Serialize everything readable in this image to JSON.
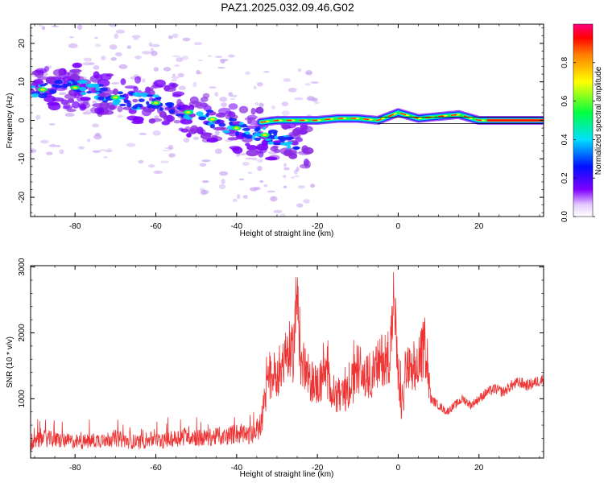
{
  "title": "PAZ1.2025.032.09.46.G02",
  "chart_data": [
    {
      "type": "heatmap",
      "xlabel": "Height of straight line (km)",
      "ylabel": "Frequency (Hz)",
      "xlim": [
        -91,
        36
      ],
      "ylim": [
        -25,
        25
      ],
      "xticks": [
        -80,
        -60,
        -40,
        -20,
        0,
        20
      ],
      "yticks": [
        -20,
        -10,
        0,
        10,
        20
      ],
      "colorbar": {
        "label": "Normalized spectral amplitude",
        "range": [
          0,
          1
        ],
        "ticks": [
          0.0,
          0.2,
          0.4,
          0.6,
          0.8
        ],
        "tick_labels": [
          "0.0",
          "0.2",
          "0.4",
          "0.6",
          "0.8"
        ]
      },
      "ridge": [
        {
          "x": -90,
          "y": 8
        },
        {
          "x": -85,
          "y": 8
        },
        {
          "x": -80,
          "y": 8.5
        },
        {
          "x": -75,
          "y": 7.5
        },
        {
          "x": -70,
          "y": 6
        },
        {
          "x": -65,
          "y": 5
        },
        {
          "x": -60,
          "y": 4.5
        },
        {
          "x": -55,
          "y": 3
        },
        {
          "x": -50,
          "y": 1.5
        },
        {
          "x": -45,
          "y": 0
        },
        {
          "x": -40,
          "y": -2
        },
        {
          "x": -35,
          "y": -3
        },
        {
          "x": -30,
          "y": -5
        },
        {
          "x": -25,
          "y": -6
        }
      ],
      "carrier": [
        {
          "x": -34,
          "y": -0.5
        },
        {
          "x": -30,
          "y": 0
        },
        {
          "x": -25,
          "y": 0
        },
        {
          "x": -20,
          "y": 0
        },
        {
          "x": -15,
          "y": 0.5
        },
        {
          "x": -10,
          "y": 0.5
        },
        {
          "x": -5,
          "y": 0
        },
        {
          "x": 0,
          "y": 2
        },
        {
          "x": 5,
          "y": 0.5
        },
        {
          "x": 10,
          "y": 1
        },
        {
          "x": 15,
          "y": 1.5
        },
        {
          "x": 20,
          "y": 0
        },
        {
          "x": 25,
          "y": 0
        },
        {
          "x": 30,
          "y": 0
        },
        {
          "x": 36,
          "y": 0
        }
      ]
    },
    {
      "type": "line",
      "xlabel": "Height of straight line (km)",
      "ylabel": "SNR (10 * v/v)",
      "xlim": [
        -91,
        36
      ],
      "ylim": [
        100,
        3020
      ],
      "xticks": [
        -80,
        -60,
        -40,
        -20,
        0,
        20
      ],
      "yticks": [
        1000,
        2000,
        3000
      ],
      "color": "#ee3333",
      "series": [
        {
          "x": [
            -91,
            -88,
            -85,
            -82,
            -79,
            -76,
            -73,
            -70,
            -67,
            -64,
            -61,
            -58,
            -55,
            -52,
            -49,
            -46,
            -43,
            -40,
            -38,
            -36,
            -34,
            -32,
            -30,
            -28,
            -26,
            -25,
            -24,
            -22,
            -20,
            -18,
            -16,
            -14,
            -12,
            -10,
            -8,
            -6,
            -4,
            -2,
            -1,
            0,
            1,
            2,
            4,
            6,
            7,
            8,
            10,
            12,
            14,
            16,
            18,
            20,
            22,
            24,
            26,
            28,
            30,
            32,
            34,
            36
          ],
          "y": [
            300,
            400,
            380,
            360,
            340,
            360,
            380,
            400,
            360,
            340,
            380,
            360,
            400,
            450,
            400,
            420,
            420,
            480,
            440,
            450,
            600,
            1300,
            1400,
            1600,
            1700,
            2600,
            1500,
            1300,
            1200,
            1400,
            1100,
            1000,
            1100,
            1500,
            1300,
            1400,
            1600,
            1700,
            2500,
            1200,
            800,
            1500,
            1300,
            1700,
            1800,
            1000,
            900,
            800,
            900,
            1000,
            900,
            1000,
            1100,
            1150,
            1100,
            1200,
            1250,
            1200,
            1250,
            1300
          ]
        }
      ]
    }
  ]
}
